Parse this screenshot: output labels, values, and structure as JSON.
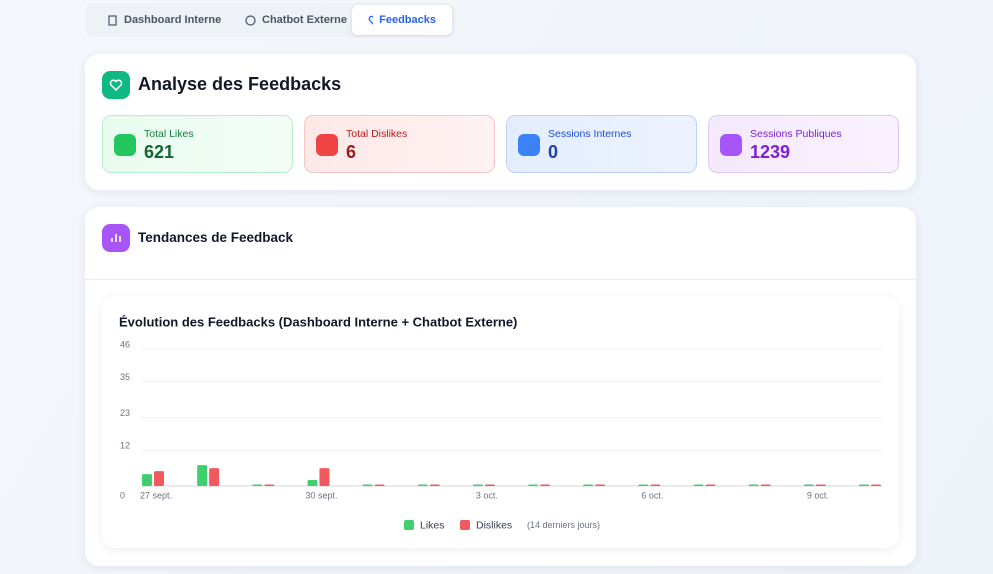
{
  "tabs": [
    {
      "label": "Dashboard Interne"
    },
    {
      "label": "Chatbot Externe"
    },
    {
      "label": "Feedbacks",
      "active": true
    }
  ],
  "header": {
    "title": "Analyse des Feedbacks"
  },
  "stats": [
    {
      "label": "Total Likes",
      "value": 621
    },
    {
      "label": "Total Dislikes",
      "value": 6
    },
    {
      "label": "Sessions Internes",
      "value": 0
    },
    {
      "label": "Sessions Publiques",
      "value": 1239
    }
  ],
  "section": {
    "title": "Tendances de Feedback"
  },
  "chart_data": {
    "type": "bar",
    "title": "Évolution des Feedbacks (Dashboard Interne + Chatbot Externe)",
    "categories": [
      "27 sept.",
      null,
      null,
      "30 sept.",
      null,
      null,
      "3 oct.",
      null,
      null,
      "6 oct.",
      null,
      null,
      "9 oct.",
      null
    ],
    "series": [
      {
        "name": "Likes",
        "color": "#3fcf6f",
        "values": [
          4,
          7,
          0,
          2,
          0,
          0,
          0,
          0,
          0,
          0,
          0,
          0,
          0,
          0
        ]
      },
      {
        "name": "Dislikes",
        "color": "#f05a5e",
        "values": [
          5,
          6,
          0,
          6,
          0,
          0,
          0,
          0,
          0,
          0,
          0,
          0,
          0,
          0
        ]
      }
    ],
    "ylim": [
      0,
      46
    ],
    "yticks": [
      0,
      12,
      23,
      35,
      46
    ],
    "grid": true,
    "legend_note": "(14 derniers jours)"
  }
}
